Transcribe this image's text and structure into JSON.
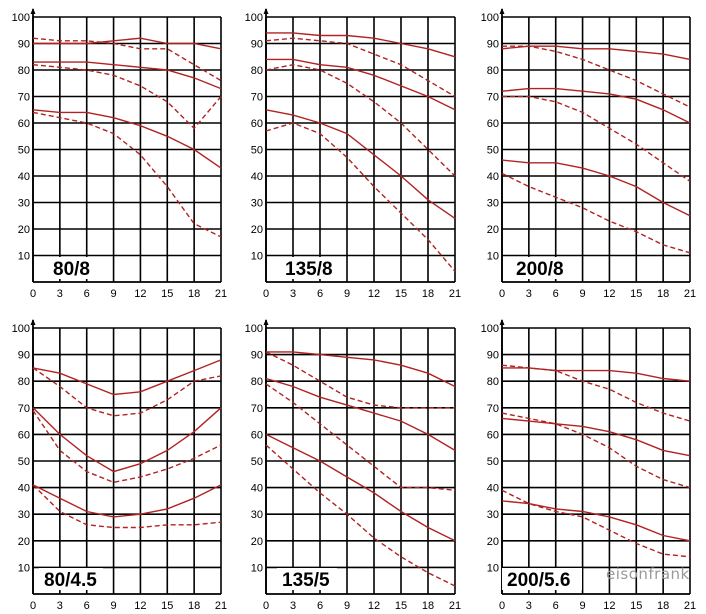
{
  "watermark": "eisonfrank",
  "colors": {
    "curve": "#b22222",
    "grid": "#000000",
    "background": "#ffffff"
  },
  "chart_data": [
    {
      "type": "line",
      "label": "80/8",
      "xticks": [
        0,
        3,
        6,
        9,
        12,
        15,
        18,
        21
      ],
      "yticks": [
        10,
        20,
        30,
        40,
        50,
        60,
        70,
        80,
        90,
        100
      ],
      "xlim": [
        0,
        21
      ],
      "ylim": [
        0,
        100
      ],
      "grid": true,
      "series": [
        {
          "style": "solid",
          "x": [
            0,
            3,
            6,
            9,
            12,
            15,
            18,
            21
          ],
          "y": [
            90,
            90,
            90,
            91,
            92,
            90,
            90,
            88
          ]
        },
        {
          "style": "dashed",
          "x": [
            0,
            3,
            6,
            9,
            12,
            15,
            18,
            21
          ],
          "y": [
            92,
            91,
            91,
            90,
            88,
            88,
            82,
            76
          ]
        },
        {
          "style": "solid",
          "x": [
            0,
            3,
            6,
            9,
            12,
            15,
            18,
            21
          ],
          "y": [
            83,
            83,
            83,
            82,
            81,
            80,
            77,
            73
          ]
        },
        {
          "style": "dashed",
          "x": [
            0,
            3,
            6,
            9,
            12,
            15,
            18,
            21
          ],
          "y": [
            82,
            81,
            80,
            78,
            74,
            68,
            58,
            70
          ]
        },
        {
          "style": "solid",
          "x": [
            0,
            3,
            6,
            9,
            12,
            15,
            18,
            21
          ],
          "y": [
            65,
            64,
            64,
            62,
            59,
            55,
            50,
            43
          ]
        },
        {
          "style": "dashed",
          "x": [
            0,
            3,
            6,
            9,
            12,
            15,
            18,
            21
          ],
          "y": [
            64,
            62,
            60,
            56,
            48,
            36,
            22,
            17
          ]
        }
      ]
    },
    {
      "type": "line",
      "label": "135/8",
      "xticks": [
        0,
        3,
        6,
        9,
        12,
        15,
        18,
        21
      ],
      "yticks": [
        10,
        20,
        30,
        40,
        50,
        60,
        70,
        80,
        90,
        100
      ],
      "xlim": [
        0,
        21
      ],
      "ylim": [
        0,
        100
      ],
      "grid": true,
      "series": [
        {
          "style": "solid",
          "x": [
            0,
            3,
            6,
            9,
            12,
            15,
            18,
            21
          ],
          "y": [
            94,
            94,
            93,
            93,
            92,
            90,
            88,
            85
          ]
        },
        {
          "style": "dashed",
          "x": [
            0,
            3,
            6,
            9,
            12,
            15,
            18,
            21
          ],
          "y": [
            91,
            92,
            91,
            90,
            86,
            82,
            76,
            70
          ]
        },
        {
          "style": "solid",
          "x": [
            0,
            3,
            6,
            9,
            12,
            15,
            18,
            21
          ],
          "y": [
            84,
            84,
            82,
            81,
            78,
            74,
            70,
            65
          ]
        },
        {
          "style": "dashed",
          "x": [
            0,
            3,
            6,
            9,
            12,
            15,
            18,
            21
          ],
          "y": [
            80,
            82,
            80,
            75,
            68,
            60,
            50,
            40
          ]
        },
        {
          "style": "solid",
          "x": [
            0,
            3,
            6,
            9,
            12,
            15,
            18,
            21
          ],
          "y": [
            65,
            63,
            60,
            56,
            48,
            40,
            31,
            24
          ]
        },
        {
          "style": "dashed",
          "x": [
            0,
            3,
            6,
            9,
            12,
            15,
            18,
            21
          ],
          "y": [
            57,
            60,
            56,
            47,
            36,
            26,
            16,
            4
          ]
        }
      ]
    },
    {
      "type": "line",
      "label": "200/8",
      "xticks": [
        0,
        3,
        6,
        9,
        12,
        15,
        18,
        21
      ],
      "yticks": [
        10,
        20,
        30,
        40,
        50,
        60,
        70,
        80,
        90,
        100
      ],
      "xlim": [
        0,
        21
      ],
      "ylim": [
        0,
        100
      ],
      "grid": true,
      "series": [
        {
          "style": "solid",
          "x": [
            0,
            3,
            6,
            9,
            12,
            15,
            18,
            21
          ],
          "y": [
            88,
            89,
            89,
            88,
            88,
            87,
            86,
            84
          ]
        },
        {
          "style": "dashed",
          "x": [
            0,
            3,
            6,
            9,
            12,
            15,
            18,
            21
          ],
          "y": [
            89,
            89,
            87,
            84,
            80,
            76,
            71,
            66
          ]
        },
        {
          "style": "solid",
          "x": [
            0,
            3,
            6,
            9,
            12,
            15,
            18,
            21
          ],
          "y": [
            72,
            73,
            73,
            72,
            71,
            69,
            65,
            60
          ]
        },
        {
          "style": "dashed",
          "x": [
            0,
            3,
            6,
            9,
            12,
            15,
            18,
            21
          ],
          "y": [
            70,
            70,
            68,
            64,
            58,
            52,
            45,
            38
          ]
        },
        {
          "style": "solid",
          "x": [
            0,
            3,
            6,
            9,
            12,
            15,
            18,
            21
          ],
          "y": [
            46,
            45,
            45,
            43,
            40,
            36,
            30,
            25
          ]
        },
        {
          "style": "dashed",
          "x": [
            0,
            3,
            6,
            9,
            12,
            15,
            18,
            21
          ],
          "y": [
            41,
            36,
            32,
            28,
            23,
            19,
            14,
            11
          ]
        }
      ]
    },
    {
      "type": "line",
      "label": "80/4.5",
      "xticks": [
        0,
        3,
        6,
        9,
        12,
        15,
        18,
        21
      ],
      "yticks": [
        10,
        20,
        30,
        40,
        50,
        60,
        70,
        80,
        90,
        100
      ],
      "xlim": [
        0,
        21
      ],
      "ylim": [
        0,
        100
      ],
      "grid": true,
      "series": [
        {
          "style": "solid",
          "x": [
            0,
            3,
            6,
            9,
            12,
            15,
            18,
            21
          ],
          "y": [
            85,
            83,
            79,
            75,
            76,
            80,
            84,
            88
          ]
        },
        {
          "style": "dashed",
          "x": [
            0,
            3,
            6,
            9,
            12,
            15,
            18,
            21
          ],
          "y": [
            85,
            78,
            70,
            67,
            68,
            73,
            80,
            82
          ]
        },
        {
          "style": "solid",
          "x": [
            0,
            3,
            6,
            9,
            12,
            15,
            18,
            21
          ],
          "y": [
            70,
            60,
            52,
            46,
            49,
            54,
            61,
            70
          ]
        },
        {
          "style": "dashed",
          "x": [
            0,
            3,
            6,
            9,
            12,
            15,
            18,
            21
          ],
          "y": [
            69,
            54,
            46,
            42,
            44,
            47,
            51,
            56
          ]
        },
        {
          "style": "solid",
          "x": [
            0,
            3,
            6,
            9,
            12,
            15,
            18,
            21
          ],
          "y": [
            41,
            36,
            31,
            29,
            30,
            32,
            36,
            41
          ]
        },
        {
          "style": "dashed",
          "x": [
            0,
            3,
            6,
            9,
            12,
            15,
            18,
            21
          ],
          "y": [
            41,
            31,
            26,
            25,
            25,
            26,
            26,
            27
          ]
        }
      ]
    },
    {
      "type": "line",
      "label": "135/5",
      "xticks": [
        0,
        3,
        6,
        9,
        12,
        15,
        18,
        21
      ],
      "yticks": [
        10,
        20,
        30,
        40,
        50,
        60,
        70,
        80,
        90,
        100
      ],
      "xlim": [
        0,
        21
      ],
      "ylim": [
        0,
        100
      ],
      "grid": true,
      "series": [
        {
          "style": "solid",
          "x": [
            0,
            3,
            6,
            9,
            12,
            15,
            18,
            21
          ],
          "y": [
            91,
            91,
            90,
            89,
            88,
            86,
            83,
            78
          ]
        },
        {
          "style": "dashed",
          "x": [
            0,
            3,
            6,
            9,
            12,
            15,
            18,
            21
          ],
          "y": [
            91,
            86,
            80,
            74,
            71,
            70,
            70,
            70
          ]
        },
        {
          "style": "solid",
          "x": [
            0,
            3,
            6,
            9,
            12,
            15,
            18,
            21
          ],
          "y": [
            81,
            78,
            74,
            71,
            68,
            65,
            60,
            54
          ]
        },
        {
          "style": "dashed",
          "x": [
            0,
            3,
            6,
            9,
            12,
            15,
            18,
            21
          ],
          "y": [
            79,
            72,
            64,
            56,
            48,
            40,
            40,
            39
          ]
        },
        {
          "style": "solid",
          "x": [
            0,
            3,
            6,
            9,
            12,
            15,
            18,
            21
          ],
          "y": [
            60,
            55,
            50,
            44,
            38,
            31,
            25,
            20
          ]
        },
        {
          "style": "dashed",
          "x": [
            0,
            3,
            6,
            9,
            12,
            15,
            18,
            21
          ],
          "y": [
            56,
            47,
            38,
            30,
            21,
            14,
            8,
            3
          ]
        }
      ]
    },
    {
      "type": "line",
      "label": "200/5.6",
      "xticks": [
        0,
        3,
        6,
        9,
        12,
        15,
        18,
        21
      ],
      "yticks": [
        10,
        20,
        30,
        40,
        50,
        60,
        70,
        80,
        90,
        100
      ],
      "xlim": [
        0,
        21
      ],
      "ylim": [
        0,
        100
      ],
      "grid": true,
      "series": [
        {
          "style": "solid",
          "x": [
            0,
            3,
            6,
            9,
            12,
            15,
            18,
            21
          ],
          "y": [
            85,
            85,
            84,
            84,
            84,
            83,
            81,
            80
          ]
        },
        {
          "style": "dashed",
          "x": [
            0,
            3,
            6,
            9,
            12,
            15,
            18,
            21
          ],
          "y": [
            86,
            85,
            84,
            80,
            77,
            72,
            68,
            65
          ]
        },
        {
          "style": "solid",
          "x": [
            0,
            3,
            6,
            9,
            12,
            15,
            18,
            21
          ],
          "y": [
            66,
            65,
            64,
            63,
            61,
            58,
            54,
            52
          ]
        },
        {
          "style": "dashed",
          "x": [
            0,
            3,
            6,
            9,
            12,
            15,
            18,
            21
          ],
          "y": [
            68,
            66,
            64,
            60,
            55,
            48,
            43,
            40
          ]
        },
        {
          "style": "solid",
          "x": [
            0,
            3,
            6,
            9,
            12,
            15,
            18,
            21
          ],
          "y": [
            35,
            34,
            32,
            31,
            29,
            26,
            22,
            20
          ]
        },
        {
          "style": "dashed",
          "x": [
            0,
            3,
            6,
            9,
            12,
            15,
            18,
            21
          ],
          "y": [
            39,
            34,
            31,
            29,
            24,
            19,
            15,
            14
          ]
        }
      ]
    }
  ]
}
